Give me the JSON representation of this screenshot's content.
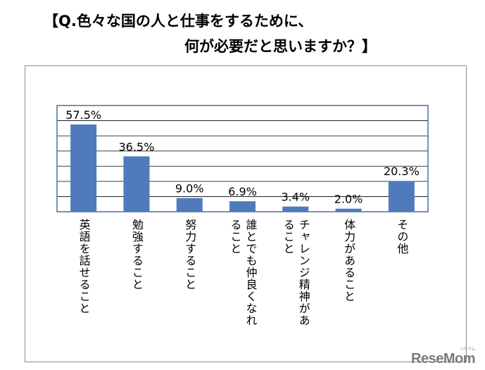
{
  "title": {
    "line1": "【Q.色々な国の人と仕事をするために、",
    "line2": "何が必要だと思いますか？】"
  },
  "chart_data": {
    "type": "bar",
    "categories": [
      "英語を話せること",
      "勉強すること",
      "努力すること",
      "誰とでも仲良くなれること",
      "チャレンジ精神があること",
      "体力があること",
      "その他"
    ],
    "category_labels_display": [
      "英語を話せること",
      "勉強すること",
      "努力すること",
      "誰とでも仲良くなれ\nること",
      "チャレンジ精神があ\nること",
      "体力があること",
      "その他"
    ],
    "values": [
      57.5,
      36.5,
      9.0,
      6.9,
      3.4,
      2.0,
      20.3
    ],
    "data_labels": [
      "57.5%",
      "36.5%",
      "9.0%",
      "6.9%",
      "3.4%",
      "2.0%",
      "20.3%"
    ],
    "ylim": [
      0,
      70
    ],
    "grid": true,
    "bar_color": "#4f7bbd",
    "gridline_color": "#000000"
  },
  "watermark": {
    "main": "ReseMom",
    "small": "リセマム"
  }
}
